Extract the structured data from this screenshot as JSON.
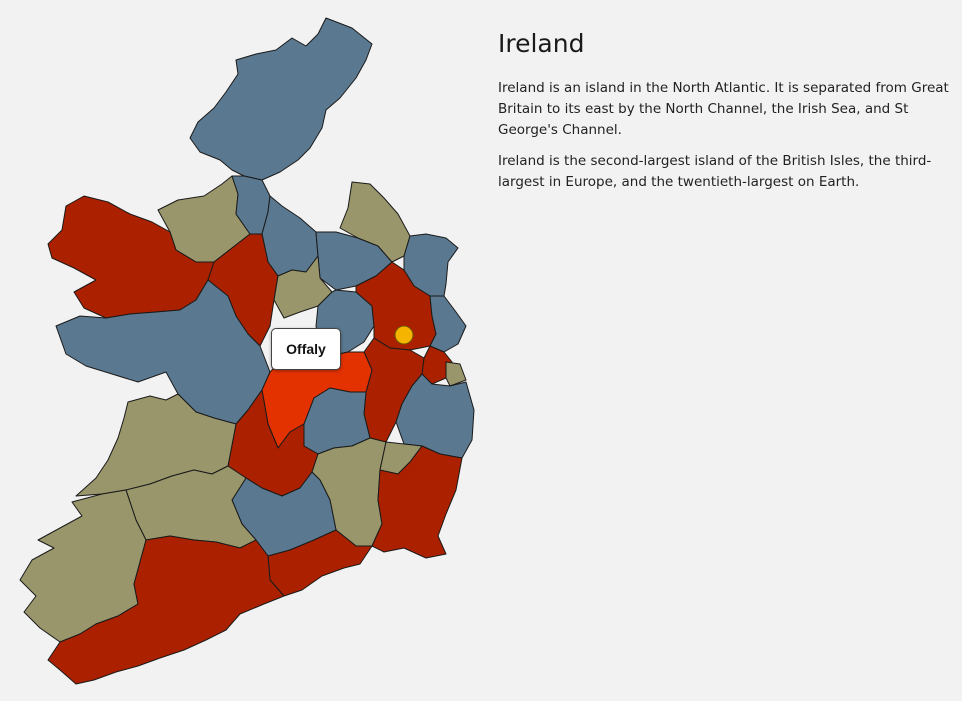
{
  "title": "Ireland",
  "paragraphs": [
    "Ireland is an island in the North Atlantic. It is separated from Great Britain to its east by the North Channel, the Irish Sea, and St George's Channel.",
    "Ireland is the second-largest island of the British Isles, the third-largest in Europe, and the twentieth-largest on Earth."
  ],
  "tooltip": {
    "label": "Offaly"
  },
  "map": {
    "selected_county": "Offaly",
    "colors": {
      "blue": "#5a788f",
      "red": "#ab2100",
      "olive": "#99966b",
      "highlight": "#e33100",
      "marker": "#f4b400",
      "background": "#f2f2f2"
    }
  }
}
